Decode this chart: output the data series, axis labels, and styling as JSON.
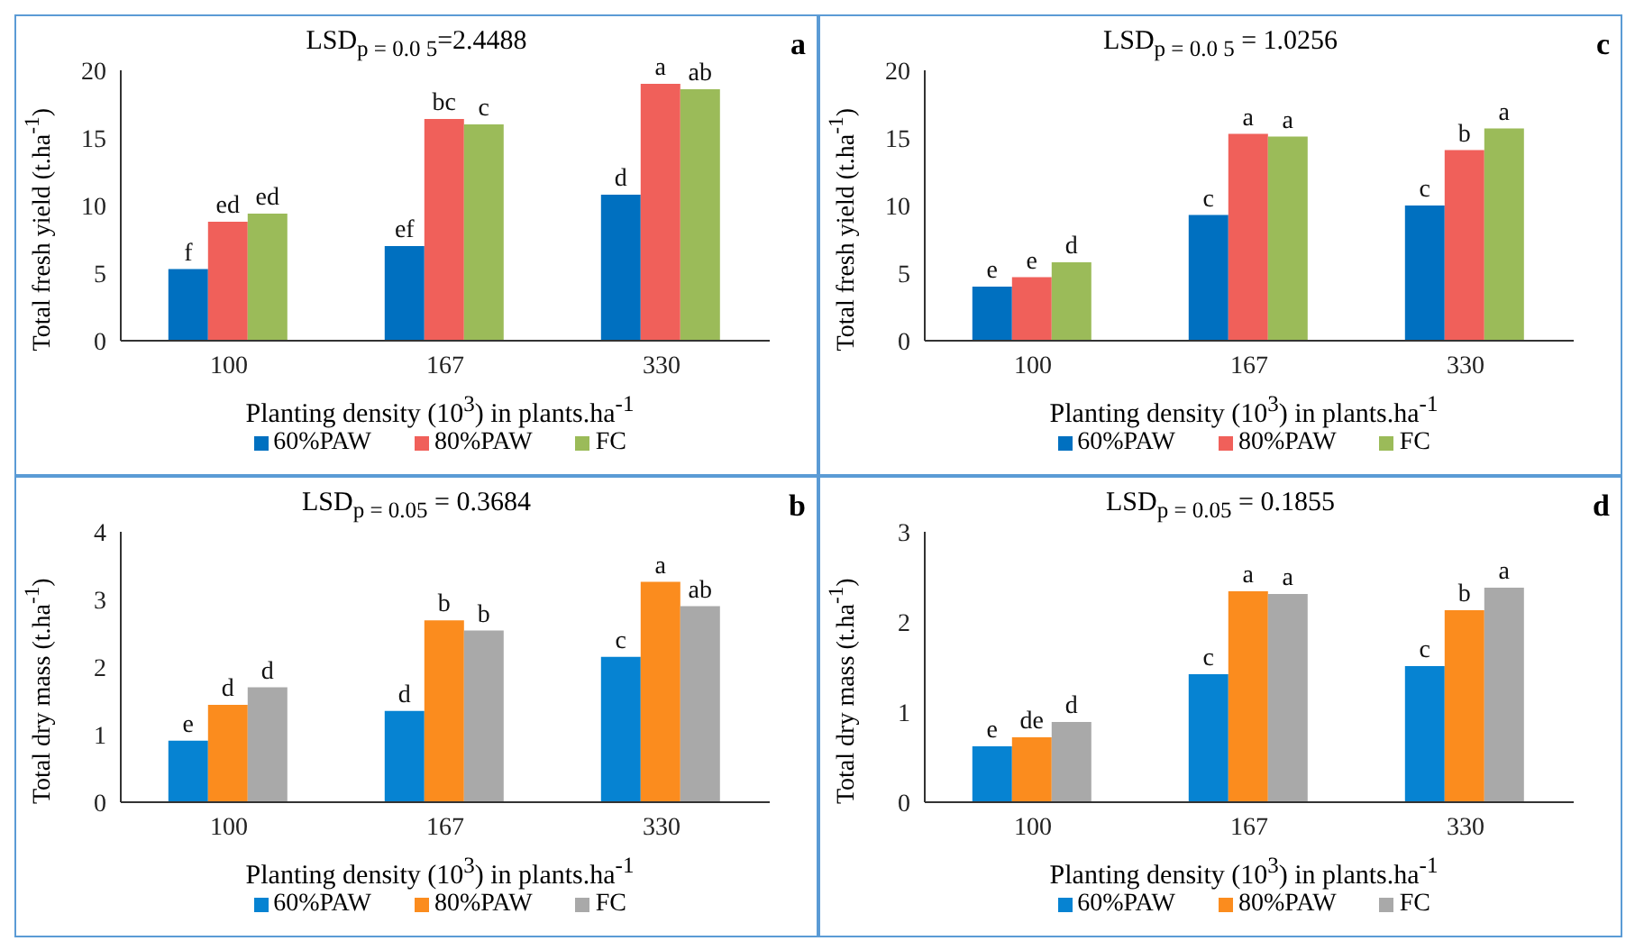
{
  "chart_data": [
    {
      "type": "bar",
      "title": "LSD$_{p = 0.0 5}$=2.4488",
      "xlabel": "Planting density (10$^{3}$) in plants.ha$^{-1}$",
      "ylabel": "Total fresh yield (t.ha$^{-1}$)",
      "categories": [
        "100",
        "167",
        "330"
      ],
      "series": [
        {
          "name": "60%PAW",
          "color": "#0070c0",
          "values": [
            5.3,
            7.0,
            10.8
          ],
          "value_labels": [
            "f",
            "ef",
            "d"
          ]
        },
        {
          "name": "80%PAW",
          "color": "#f0605a",
          "values": [
            8.8,
            16.4,
            19.0
          ],
          "value_labels": [
            "ed",
            "bc",
            "a"
          ]
        },
        {
          "name": "FC",
          "color": "#9bbb59",
          "values": [
            9.4,
            16.0,
            18.6
          ],
          "value_labels": [
            "ed",
            "c",
            "ab"
          ]
        }
      ],
      "ylim": [
        0,
        20
      ],
      "yticks": [
        0,
        5,
        10,
        15,
        20
      ],
      "legend": "bottom",
      "annotations": [
        "a"
      ]
    },
    {
      "type": "bar",
      "title": "LSD$_{p = 0.0 5}$ = 1.0256",
      "xlabel": "Planting density (10$^{3}$) in plants.ha$^{-1}$",
      "ylabel": "Total fresh yield (t.ha$^{-1}$)",
      "categories": [
        "100",
        "167",
        "330"
      ],
      "series": [
        {
          "name": "60%PAW",
          "color": "#0070c0",
          "values": [
            4.0,
            9.3,
            10.0
          ],
          "value_labels": [
            "e",
            "c",
            "c"
          ]
        },
        {
          "name": "80%PAW",
          "color": "#f0605a",
          "values": [
            4.7,
            15.3,
            14.1
          ],
          "value_labels": [
            "e",
            "a",
            "b"
          ]
        },
        {
          "name": "FC",
          "color": "#9bbb59",
          "values": [
            5.8,
            15.1,
            15.7
          ],
          "value_labels": [
            "d",
            "a",
            "a"
          ]
        }
      ],
      "ylim": [
        0,
        20
      ],
      "yticks": [
        0,
        5,
        10,
        15,
        20
      ],
      "legend": "bottom",
      "annotations": [
        "c"
      ]
    },
    {
      "type": "bar",
      "title": "LSD$_{p = 0.05}$ = 0.3684",
      "xlabel": "Planting density (10$^{3}$) in plants.ha$^{-1}$",
      "ylabel": "Total dry mass (t.ha$^{-1}$)",
      "categories": [
        "100",
        "167",
        "330"
      ],
      "series": [
        {
          "name": "60%PAW",
          "color": "#0683d2",
          "values": [
            0.91,
            1.35,
            2.15
          ],
          "value_labels": [
            "e",
            "d",
            "c"
          ]
        },
        {
          "name": "80%PAW",
          "color": "#fb8c1e",
          "values": [
            1.44,
            2.69,
            3.26
          ],
          "value_labels": [
            "d",
            "b",
            "a"
          ]
        },
        {
          "name": "FC",
          "color": "#a9a9a9",
          "values": [
            1.7,
            2.54,
            2.9
          ],
          "value_labels": [
            "d",
            "b",
            "ab"
          ]
        }
      ],
      "ylim": [
        0,
        4
      ],
      "yticks": [
        0,
        1,
        2,
        3,
        4
      ],
      "legend": "bottom",
      "annotations": [
        "b"
      ]
    },
    {
      "type": "bar",
      "title": "LSD$_{p = 0.05}$ = 0.1855",
      "xlabel": "Planting density (10$^{3}$) in plants.ha$^{-1}$",
      "ylabel": "Total dry mass (t.ha$^{-1}$)",
      "categories": [
        "100",
        "167",
        "330"
      ],
      "series": [
        {
          "name": "60%PAW",
          "color": "#0683d2",
          "values": [
            0.62,
            1.42,
            1.51
          ],
          "value_labels": [
            "e",
            "c",
            "c"
          ]
        },
        {
          "name": "80%PAW",
          "color": "#fb8c1e",
          "values": [
            0.72,
            2.34,
            2.13
          ],
          "value_labels": [
            "de",
            "a",
            "b"
          ]
        },
        {
          "name": "FC",
          "color": "#a9a9a9",
          "values": [
            0.89,
            2.31,
            2.38
          ],
          "value_labels": [
            "d",
            "a",
            "a"
          ]
        }
      ],
      "ylim": [
        0,
        3
      ],
      "yticks": [
        0,
        1,
        2,
        3
      ],
      "legend": "bottom",
      "annotations": [
        "d"
      ]
    }
  ]
}
